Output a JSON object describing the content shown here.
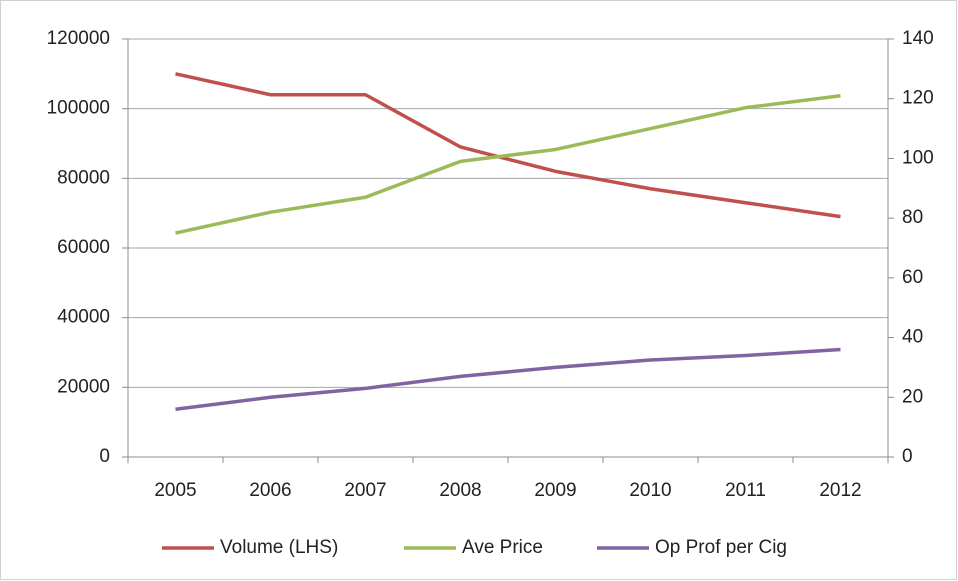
{
  "chart_data": {
    "type": "line",
    "categories": [
      "2005",
      "2006",
      "2007",
      "2008",
      "2009",
      "2010",
      "2011",
      "2012"
    ],
    "series": [
      {
        "name": "Volume (LHS)",
        "color": "#c0504d",
        "values": [
          110000,
          104000,
          104000,
          89000,
          82000,
          77000,
          73000,
          69000
        ]
      },
      {
        "name": "Ave Price",
        "color": "#9bbb59",
        "axis": "y2",
        "values": [
          75,
          82,
          87,
          99,
          103,
          110,
          117,
          121
        ]
      },
      {
        "name": "Op Prof per Cig",
        "color": "#8064a2",
        "axis": "y2",
        "values": [
          16,
          20,
          23,
          27,
          30,
          32.5,
          34,
          36
        ]
      }
    ],
    "ylim": [
      0,
      120000
    ],
    "yticks": [
      0,
      20000,
      40000,
      60000,
      80000,
      100000,
      120000
    ],
    "y2lim": [
      0,
      140
    ],
    "y2ticks": [
      0,
      20,
      40,
      60,
      80,
      100,
      120,
      140
    ],
    "grid": true,
    "legend": "bottom"
  }
}
